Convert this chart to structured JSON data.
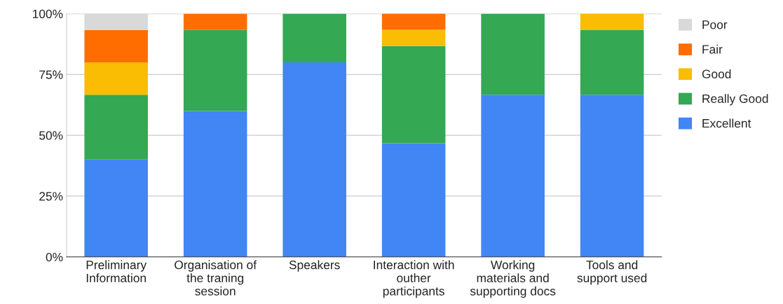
{
  "chart_data": {
    "type": "bar",
    "stacked": true,
    "categories": [
      "Preliminary\nInformation",
      "Organisation of\nthe traning\nsession",
      "Speakers",
      "Interaction with\nouther\nparticipants",
      "Working\nmaterials and\nsupporting docs",
      "Tools and\nsupport used"
    ],
    "series": [
      {
        "name": "Excellent",
        "color": "#4285f4",
        "values": [
          40,
          60,
          80,
          46.7,
          66.7,
          66.7
        ]
      },
      {
        "name": "Really Good",
        "color": "#34a853",
        "values": [
          26.7,
          33.3,
          20,
          40,
          33.3,
          26.7
        ]
      },
      {
        "name": "Good",
        "color": "#fbbc04",
        "values": [
          13.3,
          null,
          null,
          6.7,
          null,
          6.7
        ]
      },
      {
        "name": "Fair",
        "color": "#ff6d01",
        "values": [
          13.3,
          6.7,
          null,
          6.7,
          null,
          null
        ]
      },
      {
        "name": "Poor",
        "color": "#d9d9d9",
        "values": [
          6.7,
          null,
          null,
          null,
          null,
          null
        ]
      }
    ],
    "ylim": [
      0,
      100
    ],
    "yticks": [
      {
        "value": 0,
        "label": "0%"
      },
      {
        "value": 25,
        "label": "25%"
      },
      {
        "value": 50,
        "label": "50%"
      },
      {
        "value": 75,
        "label": "75%"
      },
      {
        "value": 100,
        "label": "100%"
      }
    ],
    "grid": "y",
    "legend": "right"
  }
}
